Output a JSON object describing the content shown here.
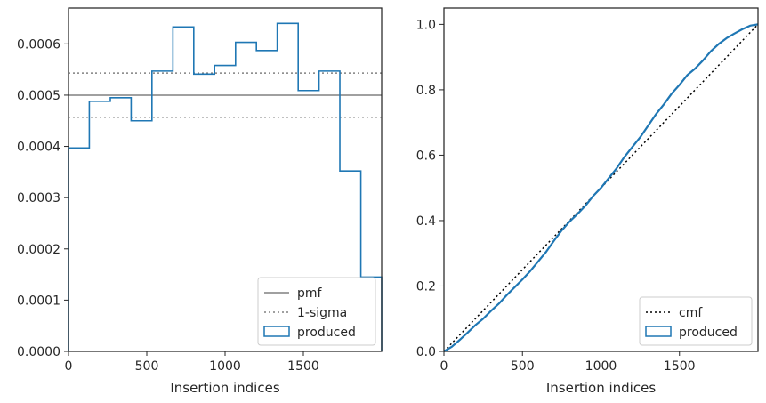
{
  "chart_data": [
    {
      "type": "histogram",
      "xlabel": "Insertion indices",
      "ylabel": "",
      "xlim": [
        0,
        2000
      ],
      "ylim": [
        0,
        0.00067
      ],
      "xticks": [
        0,
        500,
        1000,
        1500
      ],
      "xtick_labels": [
        "0",
        "500",
        "1000",
        "1500"
      ],
      "yticks": [
        0,
        0.0001,
        0.0002,
        0.0003,
        0.0004,
        0.0005,
        0.0006
      ],
      "ytick_labels": [
        "0.0000",
        "0.0001",
        "0.0002",
        "0.0003",
        "0.0004",
        "0.0005",
        "0.0006"
      ],
      "grid": false,
      "legend_position": "bottom-right",
      "bin_edges": [
        0,
        133,
        267,
        400,
        533,
        667,
        800,
        933,
        1067,
        1200,
        1333,
        1467,
        1600,
        1733,
        1867,
        2000
      ],
      "produced": [
        0.000397,
        0.000488,
        0.000495,
        0.00045,
        0.000547,
        0.000633,
        0.000541,
        0.000558,
        0.000603,
        0.000587,
        0.00064,
        0.000509,
        0.000547,
        0.000352,
        0.000145
      ],
      "pmf": 0.0005,
      "sigma_band": [
        0.000457,
        0.000543
      ],
      "legend": [
        "pmf",
        "1-sigma",
        "produced"
      ],
      "colors": {
        "produced": "#1f77b4",
        "pmf": "#808080",
        "sigma": "#808080"
      }
    },
    {
      "type": "line",
      "xlabel": "Insertion indices",
      "ylabel": "",
      "xlim": [
        0,
        2000
      ],
      "ylim": [
        0,
        1.05
      ],
      "xticks": [
        0,
        500,
        1000,
        1500
      ],
      "xtick_labels": [
        "0",
        "500",
        "1000",
        "1500"
      ],
      "yticks": [
        0,
        0.2,
        0.4,
        0.6,
        0.8,
        1.0
      ],
      "ytick_labels": [
        "0.0",
        "0.2",
        "0.4",
        "0.6",
        "0.8",
        "1.0"
      ],
      "grid": false,
      "legend_position": "bottom-right",
      "produced": {
        "x": [
          0,
          50,
          100,
          150,
          200,
          250,
          300,
          350,
          400,
          450,
          500,
          550,
          600,
          650,
          700,
          750,
          800,
          850,
          900,
          950,
          1000,
          1050,
          1100,
          1150,
          1200,
          1250,
          1300,
          1350,
          1400,
          1450,
          1500,
          1550,
          1600,
          1650,
          1700,
          1750,
          1800,
          1850,
          1900,
          1950,
          2000
        ],
        "y": [
          0,
          0.014,
          0.035,
          0.057,
          0.08,
          0.1,
          0.124,
          0.146,
          0.172,
          0.196,
          0.22,
          0.246,
          0.275,
          0.304,
          0.338,
          0.37,
          0.397,
          0.42,
          0.445,
          0.475,
          0.5,
          0.53,
          0.56,
          0.595,
          0.625,
          0.655,
          0.69,
          0.725,
          0.755,
          0.788,
          0.815,
          0.845,
          0.865,
          0.89,
          0.918,
          0.94,
          0.958,
          0.972,
          0.985,
          0.996,
          1.0
        ]
      },
      "cmf": {
        "x": [
          0,
          2000
        ],
        "y": [
          0,
          1
        ]
      },
      "legend": [
        "cmf",
        "produced"
      ],
      "colors": {
        "produced": "#1f77b4",
        "cmf": "#000000"
      }
    }
  ]
}
